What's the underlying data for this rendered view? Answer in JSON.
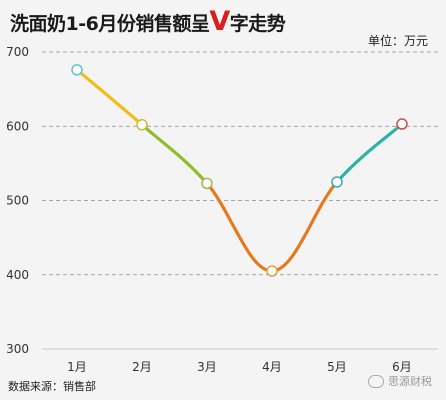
{
  "header": {
    "title_before": "洗面奶1-6月份销售额呈",
    "title_v": "V",
    "title_after": "字走势",
    "unit": "单位：万元"
  },
  "footer": {
    "source": "数据来源：销售部",
    "watermark": "思源财税"
  },
  "chart_data": {
    "type": "line",
    "title": "洗面奶1-6月份销售额呈V字走势",
    "categories": [
      "1月",
      "2月",
      "3月",
      "4月",
      "5月",
      "6月"
    ],
    "series": [
      {
        "values": [
          676,
          602,
          523,
          405,
          525,
          603
        ]
      }
    ],
    "segment_colors": [
      "#f2bd1b",
      "#8fbd2c",
      "#e6791e",
      "#e6791e",
      "#2bb3a3",
      "#d23b3b"
    ],
    "marker_colors": [
      "#5fc3d6",
      "#cbbd3a",
      "#a6b54a",
      "#e6a040",
      "#3aa8b8",
      "#d44a4a"
    ],
    "ylim": [
      300,
      700
    ],
    "yticks": [
      300,
      400,
      500,
      600,
      700
    ],
    "grid": "horizontal-dashed",
    "xlabel": "",
    "ylabel": ""
  }
}
